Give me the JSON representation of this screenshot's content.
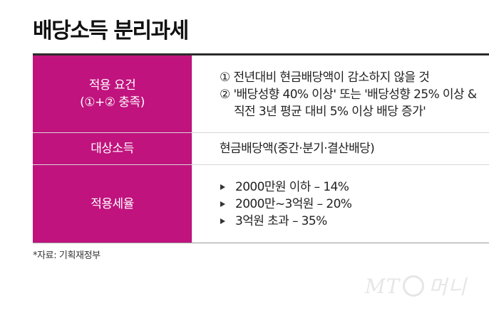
{
  "title": "배당소득 분리과세",
  "table": {
    "rows": [
      {
        "label_lines": [
          "적용 요건",
          "(①+② 충족)"
        ],
        "content_lines": [
          "① 전년대비 현금배당액이 감소하지 않을 것",
          "② '배당성향 40% 이상' 또는 '배당성향 25% 이상 &",
          "직전 3년 평균 대비 5% 이상 배당 증가'"
        ]
      },
      {
        "label_lines": [
          "대상소득"
        ],
        "content_lines": [
          "현금배당액(중간·분기·결산배당)"
        ]
      },
      {
        "label_lines": [
          "적용세율"
        ],
        "content_lines": [
          "2000만원 이하 – 14%",
          "2000만~3억원 – 20%",
          "3억원 초과 – 35%"
        ]
      }
    ]
  },
  "source": "*자료: 기획재정부",
  "watermark": {
    "left": "MT",
    "right": "머니"
  },
  "colors": {
    "label_bg": "#c0137e",
    "label_text": "#ffffff",
    "title": "#111111"
  }
}
